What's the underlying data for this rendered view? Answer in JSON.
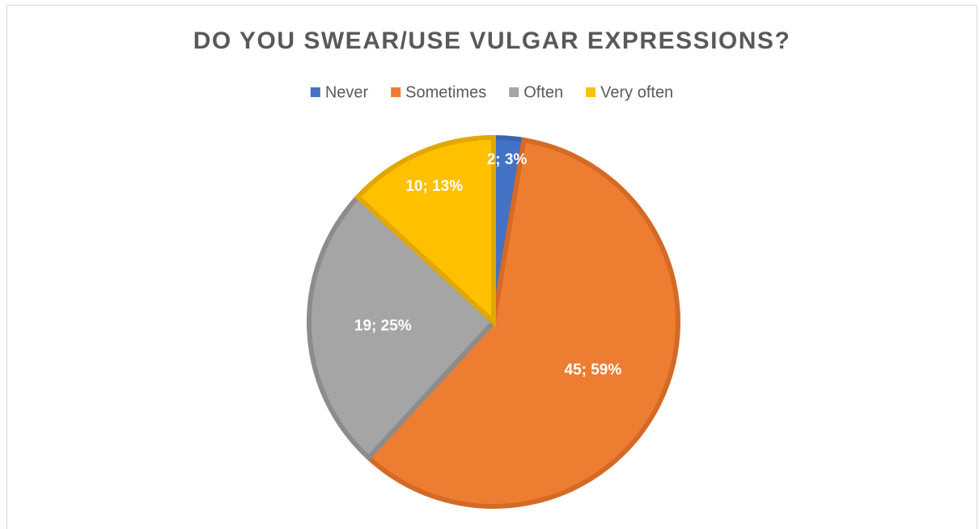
{
  "chart_data": {
    "type": "pie",
    "title": "DO YOU SWEAR/USE VULGAR EXPRESSIONS?",
    "categories": [
      "Never",
      "Sometimes",
      "Often",
      "Very often"
    ],
    "values": [
      2,
      45,
      19,
      10
    ],
    "value_labels": [
      "2; 3%",
      "45; 59%",
      "19; 25%",
      "10; 13%"
    ],
    "colors": [
      "#4472c4",
      "#ed7d31",
      "#a5a5a5",
      "#ffc000"
    ],
    "edge_colors": [
      "#3b64ae",
      "#d46a26",
      "#8c8c8c",
      "#e0a800"
    ],
    "legend": "top"
  }
}
